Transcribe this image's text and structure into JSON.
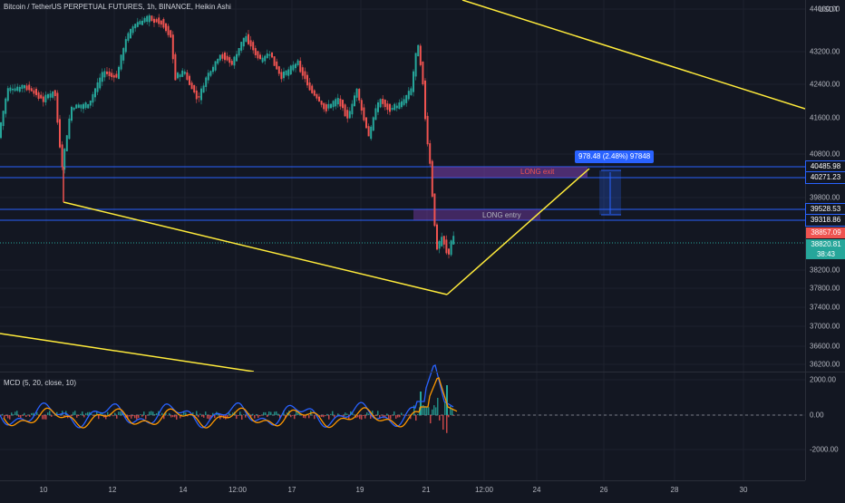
{
  "header": {
    "title": "Bitcoin / TetherUS PERPETUAL FUTURES, 1h, BINANCE, Heikin Ashi",
    "currency": "USDT"
  },
  "price_axis": {
    "ticks": [
      "44000.00",
      "43200.00",
      "42400.00",
      "41600.00",
      "40800.00",
      "39800.00",
      "38200.00",
      "37800.00",
      "37400.00",
      "37000.00",
      "36600.00",
      "36200.00"
    ],
    "tick_values": [
      44000,
      43200,
      42400,
      41600,
      40800,
      39800,
      38200,
      37800,
      37400,
      37000,
      36600,
      36200
    ],
    "tags": {
      "long_exit_top": "40485.98",
      "long_exit_bottom": "40271.23",
      "long_entry_top": "39528.53",
      "long_entry_bottom": "39318.86",
      "high_price": "38857.09",
      "last_price": "38820.81",
      "countdown": "38:43"
    },
    "tag_colors": {
      "blue": "#2962ff",
      "red": "#ef5350",
      "green": "#26a69a"
    }
  },
  "time_axis": {
    "labels": [
      "10",
      "12",
      "14",
      "12:00",
      "17",
      "19",
      "21",
      "12:00",
      "24",
      "26",
      "28",
      "30"
    ]
  },
  "annotations": {
    "measure": "978.48 (2.48%) 97848",
    "long_exit": "LONG exit",
    "long_entry": "LONG entry"
  },
  "macd": {
    "legend": "MCD (5, 20, close, 10)",
    "ticks": [
      "2000.00",
      "0.00",
      "-2000.00"
    ],
    "tick_values": [
      2000,
      0,
      -2000
    ]
  },
  "colors": {
    "background": "#131722",
    "up": "#26a69a",
    "down": "#ef5350",
    "trendline": "#ffeb3b",
    "blue_line": "#2962ff",
    "orange_line": "#ff9800",
    "zone_fill": "#7b3fb0"
  }
}
